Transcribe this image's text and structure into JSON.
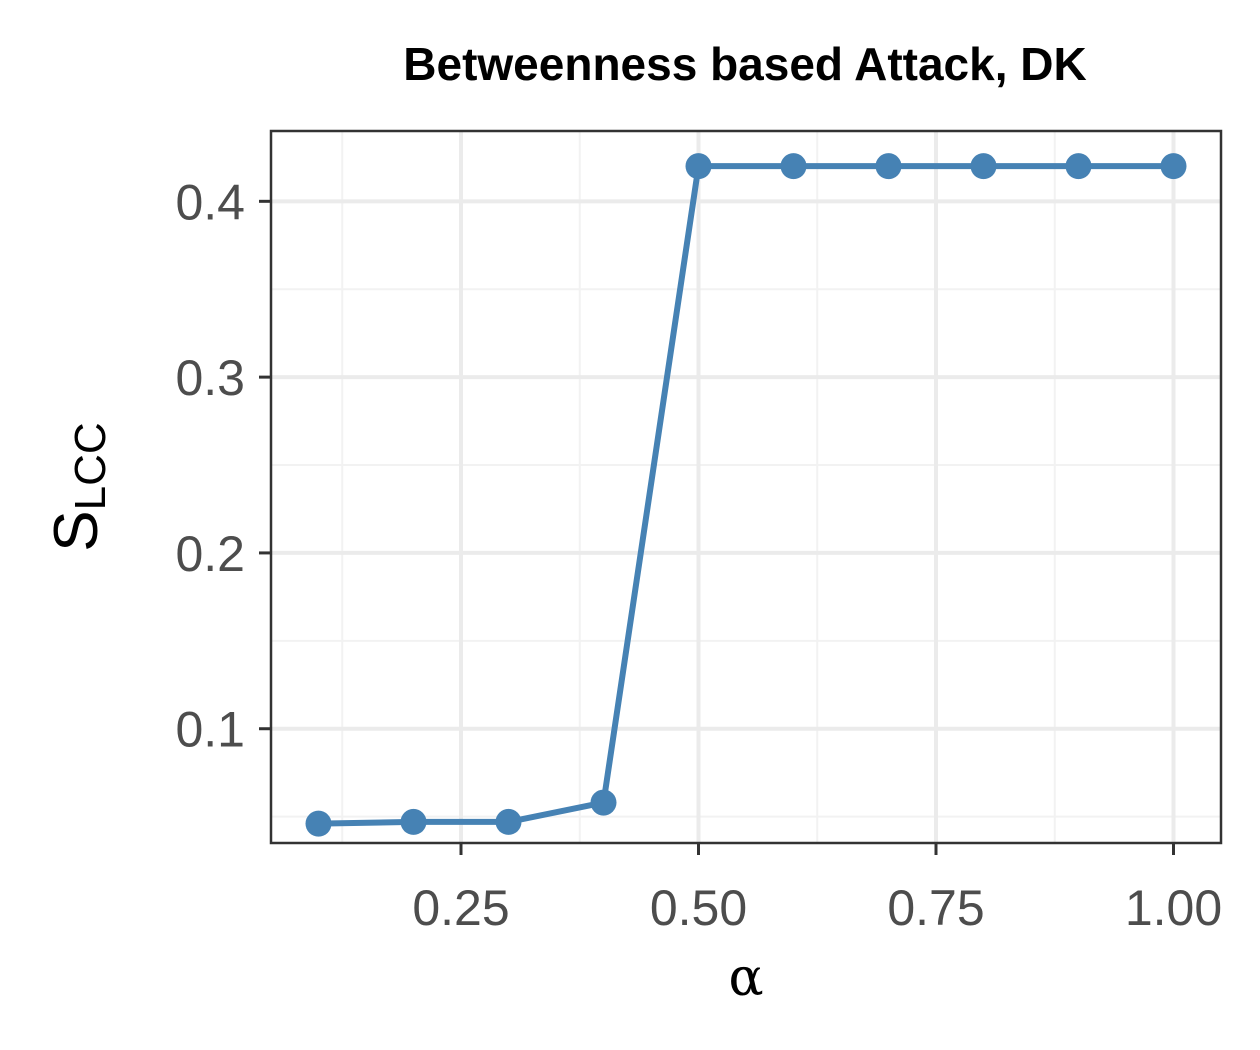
{
  "chart_data": {
    "type": "line",
    "title": "Betweenness based Attack, DK",
    "xlabel": "α",
    "ylabel": "S",
    "ylabel_subscript": "LCC",
    "xlim": [
      0.05,
      1.05
    ],
    "ylim": [
      0.035,
      0.44
    ],
    "x_ticks": [
      0.25,
      0.5,
      0.75,
      1.0
    ],
    "x_tick_labels": [
      "0.25",
      "0.50",
      "0.75",
      "1.00"
    ],
    "x_minor_ticks": [
      0.125,
      0.375,
      0.625,
      0.875
    ],
    "y_ticks": [
      0.1,
      0.2,
      0.3,
      0.4
    ],
    "y_tick_labels": [
      "0.1",
      "0.2",
      "0.3",
      "0.4"
    ],
    "y_minor_ticks": [
      0.05,
      0.15,
      0.25,
      0.35
    ],
    "grid": true,
    "series": [
      {
        "color": "#4682b4",
        "x": [
          0.1,
          0.2,
          0.3,
          0.4,
          0.5,
          0.6,
          0.7,
          0.8,
          0.9,
          1.0
        ],
        "y": [
          0.046,
          0.047,
          0.047,
          0.058,
          0.42,
          0.42,
          0.42,
          0.42,
          0.42,
          0.42
        ]
      }
    ],
    "colors": {
      "panel_border": "#333333",
      "grid_major": "#ebebeb",
      "grid_minor": "#f2f2f2",
      "tick": "#333333"
    }
  }
}
